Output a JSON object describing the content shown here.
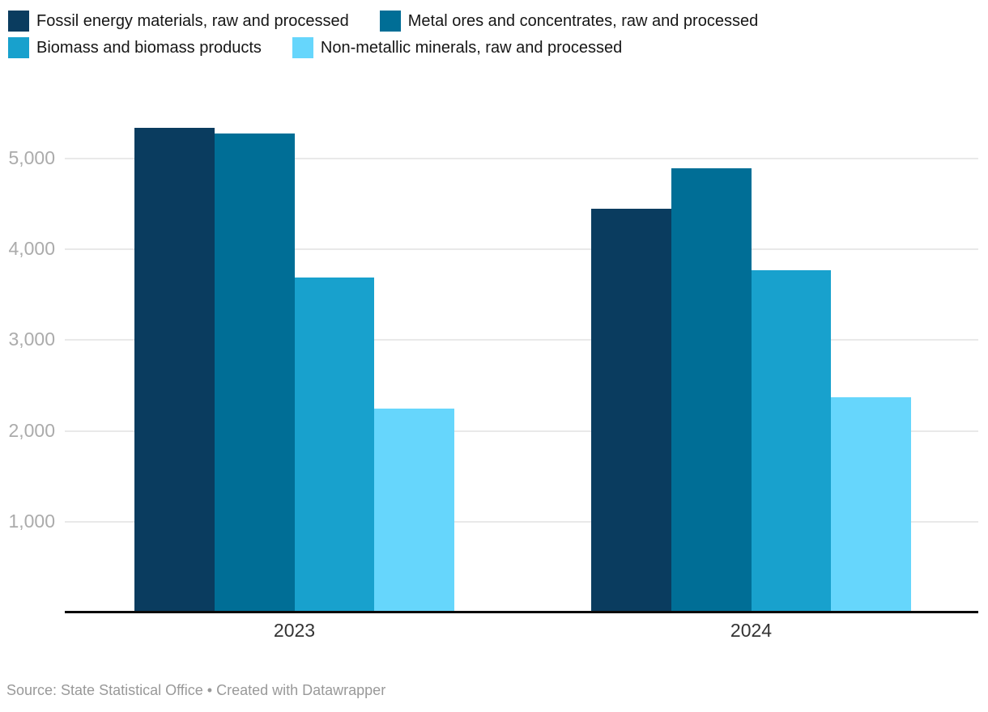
{
  "chart_data": {
    "type": "bar",
    "title": "",
    "categories": [
      "2023",
      "2024"
    ],
    "series": [
      {
        "name": "Fossil energy materials, raw and processed",
        "color": "#0a3c5f",
        "values": [
          5340,
          4450
        ]
      },
      {
        "name": "Metal ores and concentrates, raw and processed",
        "color": "#006e96",
        "values": [
          5280,
          4890
        ]
      },
      {
        "name": "Biomass and biomass products",
        "color": "#18a1cd",
        "values": [
          3690,
          3770
        ]
      },
      {
        "name": "Non-metallic minerals, raw and processed",
        "color": "#66d6fc",
        "values": [
          2250,
          2370
        ]
      }
    ],
    "ylim": [
      0,
      5400
    ],
    "yticks": [
      1000,
      2000,
      3000,
      4000,
      5000
    ],
    "ytick_labels": [
      "1,000",
      "2,000",
      "3,000",
      "4,000",
      "5,000"
    ],
    "grid": true,
    "legend_position": "top"
  },
  "footer": {
    "text": "Source: State Statistical Office • Created with Datawrapper"
  },
  "colors": {
    "background": "#ffffff",
    "grid": "#e9e9e9",
    "baseline": "#0a0a0a",
    "ytick_text": "#ababab",
    "xtick_text": "#333333",
    "legend_text": "#161616",
    "footer_text": "#999999"
  }
}
